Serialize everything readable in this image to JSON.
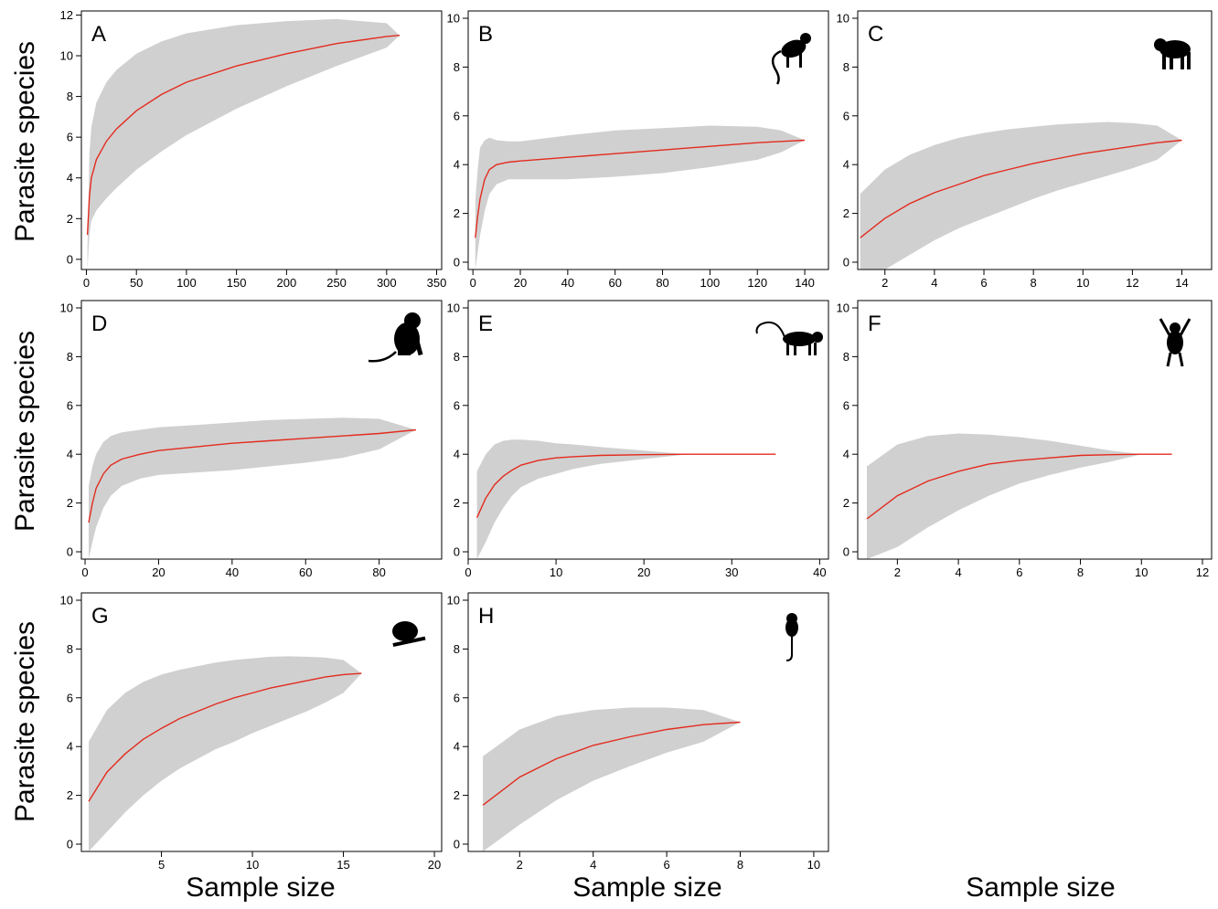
{
  "y_axis_label": "Parasite species",
  "x_axis_label": "Sample size",
  "colors": {
    "curve": "#e32b1e",
    "band": "#d0d0d0",
    "frame": "#000000"
  },
  "chart_data": [
    {
      "panel": "A",
      "type": "area",
      "icon": "none",
      "xlim": [
        -5,
        355
      ],
      "ylim": [
        -0.5,
        12.2
      ],
      "xticks": [
        0,
        50,
        100,
        150,
        200,
        250,
        300,
        350
      ],
      "yticks": [
        0,
        2,
        4,
        6,
        8,
        10,
        12
      ],
      "x": [
        1,
        3,
        5,
        10,
        20,
        30,
        50,
        75,
        100,
        150,
        200,
        250,
        300,
        313
      ],
      "mean": [
        1.2,
        3.1,
        4.0,
        4.9,
        5.8,
        6.4,
        7.3,
        8.1,
        8.7,
        9.5,
        10.1,
        10.6,
        10.95,
        11.0
      ],
      "upper": [
        0.5,
        5.2,
        6.5,
        7.7,
        8.7,
        9.3,
        10.1,
        10.7,
        11.1,
        11.5,
        11.7,
        11.8,
        11.6,
        11.0
      ],
      "lower": [
        -0.5,
        1.2,
        1.9,
        2.4,
        3.0,
        3.5,
        4.4,
        5.3,
        6.1,
        7.4,
        8.5,
        9.5,
        10.4,
        11.0
      ]
    },
    {
      "panel": "B",
      "type": "area",
      "icon": "monkey-climbing-icon",
      "xlim": [
        -2,
        150
      ],
      "ylim": [
        -0.3,
        10.3
      ],
      "xticks": [
        0,
        20,
        40,
        60,
        80,
        100,
        120,
        140
      ],
      "yticks": [
        0,
        2,
        4,
        6,
        8,
        10
      ],
      "x": [
        1,
        2,
        3,
        5,
        7,
        10,
        15,
        20,
        40,
        60,
        80,
        100,
        120,
        130,
        140
      ],
      "mean": [
        1.0,
        1.9,
        2.6,
        3.4,
        3.8,
        4.0,
        4.1,
        4.15,
        4.3,
        4.45,
        4.6,
        4.75,
        4.9,
        4.95,
        5.0
      ],
      "upper": [
        2.5,
        3.8,
        4.7,
        5.0,
        5.1,
        5.0,
        4.95,
        4.95,
        5.2,
        5.4,
        5.5,
        5.6,
        5.55,
        5.4,
        5.0
      ],
      "lower": [
        -0.3,
        0.4,
        1.1,
        2.1,
        2.8,
        3.2,
        3.4,
        3.4,
        3.4,
        3.5,
        3.65,
        3.9,
        4.2,
        4.5,
        5.0
      ]
    },
    {
      "panel": "C",
      "type": "area",
      "icon": "macaque-standing-icon",
      "xlim": [
        0.9,
        15.2
      ],
      "ylim": [
        -0.3,
        10.3
      ],
      "xticks": [
        2,
        4,
        6,
        8,
        10,
        12,
        14
      ],
      "yticks": [
        0,
        2,
        4,
        6,
        8,
        10
      ],
      "x": [
        1,
        2,
        3,
        4,
        5,
        6,
        7,
        8,
        9,
        10,
        11,
        12,
        13,
        14
      ],
      "mean": [
        1.0,
        1.8,
        2.4,
        2.85,
        3.2,
        3.55,
        3.8,
        4.05,
        4.25,
        4.45,
        4.6,
        4.75,
        4.9,
        5.0
      ],
      "upper": [
        2.8,
        3.8,
        4.4,
        4.8,
        5.1,
        5.3,
        5.45,
        5.55,
        5.65,
        5.7,
        5.75,
        5.7,
        5.6,
        5.0
      ],
      "lower": [
        -0.3,
        -0.3,
        0.3,
        0.9,
        1.4,
        1.8,
        2.2,
        2.6,
        2.95,
        3.25,
        3.55,
        3.85,
        4.2,
        5.0
      ]
    },
    {
      "panel": "D",
      "type": "area",
      "icon": "monkey-sitting-icon",
      "xlim": [
        -1,
        97
      ],
      "ylim": [
        -0.3,
        10.3
      ],
      "xticks": [
        0,
        20,
        40,
        60,
        80
      ],
      "yticks": [
        0,
        2,
        4,
        6,
        8,
        10
      ],
      "x": [
        1,
        2,
        3,
        5,
        7,
        10,
        15,
        20,
        30,
        40,
        50,
        60,
        70,
        80,
        90
      ],
      "mean": [
        1.2,
        2.0,
        2.6,
        3.2,
        3.55,
        3.8,
        4.0,
        4.15,
        4.3,
        4.45,
        4.55,
        4.65,
        4.75,
        4.85,
        5.0
      ],
      "upper": [
        2.7,
        3.5,
        4.0,
        4.5,
        4.75,
        4.9,
        5.0,
        5.1,
        5.2,
        5.3,
        5.4,
        5.45,
        5.5,
        5.45,
        5.0
      ],
      "lower": [
        -0.3,
        0.4,
        1.0,
        1.8,
        2.3,
        2.7,
        3.0,
        3.15,
        3.25,
        3.35,
        3.5,
        3.65,
        3.85,
        4.2,
        5.0
      ]
    },
    {
      "panel": "E",
      "type": "area",
      "icon": "monkey-walking-icon",
      "xlim": [
        0,
        41
      ],
      "ylim": [
        -0.3,
        10.3
      ],
      "xticks": [
        0,
        10,
        20,
        30,
        40
      ],
      "yticks": [
        0,
        2,
        4,
        6,
        8,
        10
      ],
      "x": [
        1,
        2,
        3,
        4,
        5,
        6,
        8,
        10,
        12,
        15,
        20,
        25,
        30,
        35
      ],
      "mean": [
        1.4,
        2.2,
        2.75,
        3.1,
        3.35,
        3.55,
        3.75,
        3.85,
        3.9,
        3.95,
        3.98,
        4.0,
        4.0,
        4.0
      ],
      "upper": [
        3.3,
        4.0,
        4.4,
        4.55,
        4.6,
        4.6,
        4.55,
        4.45,
        4.4,
        4.3,
        4.15,
        4.0,
        4.0,
        4.0
      ],
      "lower": [
        -0.3,
        0.4,
        1.2,
        1.8,
        2.3,
        2.65,
        3.0,
        3.2,
        3.4,
        3.6,
        3.8,
        4.0,
        4.0,
        4.0
      ]
    },
    {
      "panel": "F",
      "type": "area",
      "icon": "gibbon-hanging-icon",
      "xlim": [
        0.7,
        12.3
      ],
      "ylim": [
        -0.3,
        10.3
      ],
      "xticks": [
        2,
        4,
        6,
        8,
        10,
        12
      ],
      "yticks": [
        0,
        2,
        4,
        6,
        8,
        10
      ],
      "x": [
        1,
        2,
        3,
        4,
        5,
        6,
        7,
        8,
        9,
        10,
        11
      ],
      "mean": [
        1.35,
        2.3,
        2.9,
        3.3,
        3.6,
        3.75,
        3.85,
        3.95,
        3.98,
        4.0,
        4.0
      ],
      "upper": [
        3.5,
        4.4,
        4.75,
        4.85,
        4.8,
        4.7,
        4.55,
        4.35,
        4.15,
        4.0,
        4.0
      ],
      "lower": [
        -0.3,
        0.2,
        1.0,
        1.7,
        2.3,
        2.8,
        3.15,
        3.45,
        3.7,
        4.0,
        4.0
      ]
    },
    {
      "panel": "G",
      "type": "area",
      "icon": "loris-on-branch-icon",
      "xlim": [
        0.6,
        20.4
      ],
      "ylim": [
        -0.3,
        10.3
      ],
      "xticks": [
        5,
        10,
        15,
        20
      ],
      "yticks": [
        0,
        2,
        4,
        6,
        8,
        10
      ],
      "x": [
        1,
        2,
        3,
        4,
        5,
        6,
        7,
        8,
        9,
        10,
        11,
        12,
        13,
        14,
        15,
        16
      ],
      "mean": [
        1.75,
        2.95,
        3.7,
        4.3,
        4.75,
        5.15,
        5.45,
        5.75,
        6.0,
        6.2,
        6.4,
        6.55,
        6.7,
        6.85,
        6.95,
        7.0
      ],
      "upper": [
        4.2,
        5.5,
        6.2,
        6.65,
        6.95,
        7.15,
        7.3,
        7.45,
        7.55,
        7.62,
        7.68,
        7.7,
        7.68,
        7.65,
        7.55,
        7.0
      ],
      "lower": [
        -0.3,
        0.5,
        1.3,
        2.0,
        2.6,
        3.1,
        3.5,
        3.9,
        4.2,
        4.55,
        4.85,
        5.15,
        5.45,
        5.8,
        6.2,
        7.0
      ]
    },
    {
      "panel": "H",
      "type": "area",
      "icon": "tarsier-icon",
      "xlim": [
        0.6,
        10.4
      ],
      "ylim": [
        -0.3,
        10.3
      ],
      "xticks": [
        2,
        4,
        6,
        8,
        10
      ],
      "yticks": [
        0,
        2,
        4,
        6,
        8,
        10
      ],
      "x": [
        1,
        2,
        3,
        4,
        5,
        6,
        7,
        8
      ],
      "mean": [
        1.6,
        2.75,
        3.5,
        4.05,
        4.4,
        4.7,
        4.9,
        5.0
      ],
      "upper": [
        3.6,
        4.7,
        5.25,
        5.5,
        5.6,
        5.6,
        5.5,
        5.0
      ],
      "lower": [
        -0.3,
        0.8,
        1.8,
        2.6,
        3.2,
        3.75,
        4.2,
        5.0
      ]
    }
  ]
}
